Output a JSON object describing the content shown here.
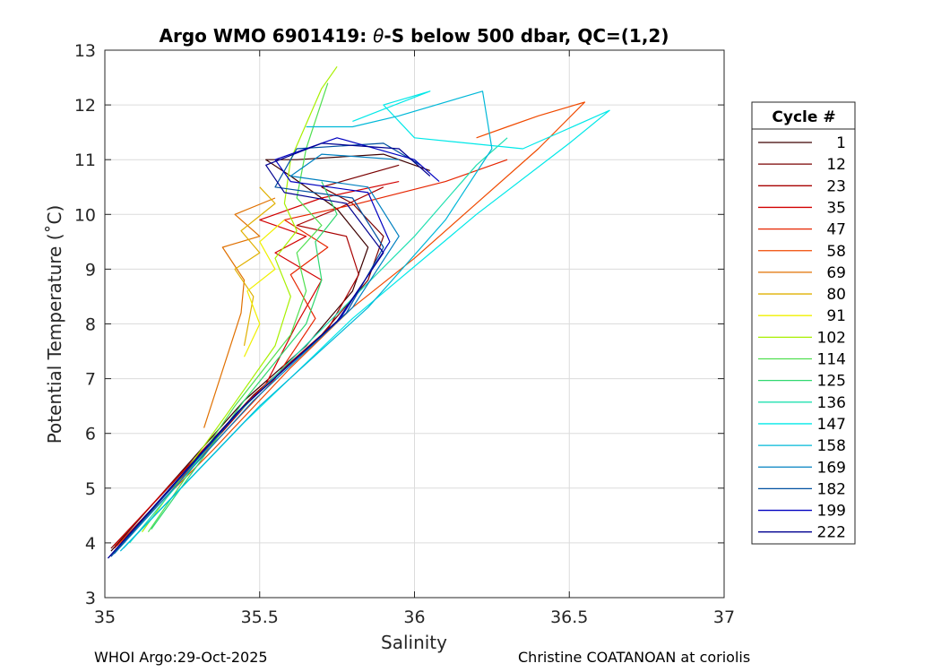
{
  "chart_data": {
    "type": "line",
    "title_prefix": "Argo WMO 6901419: ",
    "title_theta": "θ",
    "title_suffix": "-S below 500 dbar,  QC=(1,2)",
    "xlabel": "Salinity",
    "ylabel": "Potential Temperature (˚C)",
    "xlim": [
      35,
      37
    ],
    "ylim": [
      3,
      13
    ],
    "xticks": [
      35,
      35.5,
      36,
      36.5,
      37
    ],
    "xtick_labels": [
      "35",
      "35.5",
      "36",
      "36.5",
      "37"
    ],
    "yticks": [
      3,
      4,
      5,
      6,
      7,
      8,
      9,
      10,
      11,
      12,
      13
    ],
    "ytick_labels": [
      "3",
      "4",
      "5",
      "6",
      "7",
      "8",
      "9",
      "10",
      "11",
      "12",
      "13"
    ],
    "grid": true,
    "legend": {
      "title": "Cycle #",
      "placement": "right-outside",
      "entries": [
        {
          "label": "1",
          "color": "#3d0000"
        },
        {
          "label": "12",
          "color": "#7a0000"
        },
        {
          "label": "23",
          "color": "#a80000"
        },
        {
          "label": "35",
          "color": "#d20000"
        },
        {
          "label": "47",
          "color": "#e62500"
        },
        {
          "label": "58",
          "color": "#f04a00"
        },
        {
          "label": "69",
          "color": "#e07000"
        },
        {
          "label": "80",
          "color": "#e0b000"
        },
        {
          "label": "91",
          "color": "#f0f000"
        },
        {
          "label": "102",
          "color": "#a8f000"
        },
        {
          "label": "114",
          "color": "#50e050"
        },
        {
          "label": "125",
          "color": "#30d870"
        },
        {
          "label": "136",
          "color": "#20e0b0"
        },
        {
          "label": "147",
          "color": "#00e8e8"
        },
        {
          "label": "158",
          "color": "#00b8d8"
        },
        {
          "label": "169",
          "color": "#0080c0"
        },
        {
          "label": "182",
          "color": "#0050a0"
        },
        {
          "label": "199",
          "color": "#0000c0"
        },
        {
          "label": "222",
          "color": "#000090"
        }
      ]
    },
    "series": [
      {
        "name": "1",
        "color": "#3d0000",
        "points": [
          [
            35.02,
            3.85
          ],
          [
            35.2,
            5.0
          ],
          [
            35.45,
            6.6
          ],
          [
            35.65,
            7.6
          ],
          [
            35.8,
            8.6
          ],
          [
            35.85,
            9.4
          ],
          [
            35.75,
            10.1
          ],
          [
            35.6,
            10.7
          ],
          [
            35.52,
            11.0
          ],
          [
            35.62,
            11.0
          ],
          [
            35.9,
            11.1
          ],
          [
            36.05,
            10.8
          ]
        ]
      },
      {
        "name": "12",
        "color": "#7a0000",
        "points": [
          [
            35.02,
            3.9
          ],
          [
            35.22,
            5.1
          ],
          [
            35.48,
            6.7
          ],
          [
            35.7,
            7.8
          ],
          [
            35.85,
            8.8
          ],
          [
            35.9,
            9.6
          ],
          [
            35.8,
            10.2
          ],
          [
            35.7,
            10.5
          ],
          [
            35.95,
            10.9
          ]
        ]
      },
      {
        "name": "23",
        "color": "#a80000",
        "points": [
          [
            35.03,
            3.9
          ],
          [
            35.25,
            5.2
          ],
          [
            35.5,
            6.8
          ],
          [
            35.72,
            7.9
          ],
          [
            35.82,
            8.9
          ],
          [
            35.78,
            9.6
          ],
          [
            35.62,
            9.8
          ],
          [
            35.75,
            10.1
          ],
          [
            35.9,
            10.5
          ]
        ]
      },
      {
        "name": "35",
        "color": "#d20000",
        "points": [
          [
            35.03,
            3.95
          ],
          [
            35.25,
            5.3
          ],
          [
            35.52,
            6.9
          ],
          [
            35.62,
            8.0
          ],
          [
            35.7,
            8.8
          ],
          [
            35.55,
            9.3
          ],
          [
            35.65,
            9.6
          ],
          [
            35.5,
            9.9
          ],
          [
            35.7,
            10.3
          ],
          [
            35.95,
            10.6
          ]
        ]
      },
      {
        "name": "47",
        "color": "#e62500",
        "points": [
          [
            35.04,
            3.95
          ],
          [
            35.3,
            5.5
          ],
          [
            35.55,
            7.0
          ],
          [
            35.68,
            8.1
          ],
          [
            35.6,
            8.9
          ],
          [
            35.72,
            9.4
          ],
          [
            35.58,
            9.9
          ],
          [
            35.82,
            10.2
          ],
          [
            36.1,
            10.6
          ],
          [
            36.3,
            11.0
          ]
        ]
      },
      {
        "name": "58",
        "color": "#f04a00",
        "points": [
          [
            35.05,
            4.0
          ],
          [
            35.35,
            5.7
          ],
          [
            35.6,
            7.2
          ],
          [
            35.8,
            8.3
          ],
          [
            36.0,
            9.2
          ],
          [
            36.2,
            10.2
          ],
          [
            36.4,
            11.2
          ],
          [
            36.55,
            12.05
          ],
          [
            36.4,
            11.8
          ],
          [
            36.3,
            11.6
          ],
          [
            36.2,
            11.4
          ]
        ]
      },
      {
        "name": "69",
        "color": "#e07000",
        "points": [
          [
            35.32,
            6.1
          ],
          [
            35.44,
            8.2
          ],
          [
            35.45,
            8.8
          ],
          [
            35.38,
            9.4
          ],
          [
            35.5,
            9.6
          ],
          [
            35.42,
            10.0
          ],
          [
            35.55,
            10.3
          ]
        ]
      },
      {
        "name": "80",
        "color": "#e0b000",
        "points": [
          [
            35.45,
            7.6
          ],
          [
            35.48,
            8.5
          ],
          [
            35.42,
            9.0
          ],
          [
            35.5,
            9.3
          ],
          [
            35.44,
            9.7
          ],
          [
            35.55,
            10.2
          ],
          [
            35.5,
            10.5
          ]
        ]
      },
      {
        "name": "91",
        "color": "#f0f000",
        "points": [
          [
            35.45,
            7.4
          ],
          [
            35.5,
            8.0
          ],
          [
            35.46,
            8.6
          ],
          [
            35.55,
            9.0
          ],
          [
            35.5,
            9.5
          ],
          [
            35.58,
            9.9
          ]
        ]
      },
      {
        "name": "102",
        "color": "#a8f000",
        "points": [
          [
            35.12,
            4.2
          ],
          [
            35.4,
            6.4
          ],
          [
            35.55,
            7.6
          ],
          [
            35.6,
            8.5
          ],
          [
            35.55,
            9.2
          ],
          [
            35.62,
            9.7
          ],
          [
            35.58,
            10.2
          ],
          [
            35.6,
            11.0
          ],
          [
            35.7,
            12.3
          ],
          [
            35.75,
            12.7
          ]
        ]
      },
      {
        "name": "114",
        "color": "#50e050",
        "points": [
          [
            35.14,
            4.2
          ],
          [
            35.42,
            6.5
          ],
          [
            35.6,
            7.8
          ],
          [
            35.65,
            8.6
          ],
          [
            35.62,
            9.3
          ],
          [
            35.7,
            9.8
          ],
          [
            35.62,
            10.3
          ],
          [
            35.65,
            11.2
          ],
          [
            35.72,
            12.4
          ]
        ]
      },
      {
        "name": "125",
        "color": "#30d870",
        "points": [
          [
            35.15,
            4.25
          ],
          [
            35.45,
            6.6
          ],
          [
            35.65,
            8.0
          ],
          [
            35.7,
            8.8
          ],
          [
            35.68,
            9.5
          ],
          [
            35.75,
            10.0
          ],
          [
            35.7,
            10.6
          ]
        ]
      },
      {
        "name": "136",
        "color": "#20e0b0",
        "points": [
          [
            35.08,
            4.0
          ],
          [
            35.4,
            6.2
          ],
          [
            35.7,
            7.9
          ],
          [
            36.0,
            9.6
          ],
          [
            36.2,
            10.9
          ],
          [
            36.3,
            11.4
          ]
        ]
      },
      {
        "name": "147",
        "color": "#00e8e8",
        "points": [
          [
            35.06,
            3.9
          ],
          [
            35.45,
            6.2
          ],
          [
            35.8,
            8.1
          ],
          [
            36.2,
            10.0
          ],
          [
            36.5,
            11.3
          ],
          [
            36.63,
            11.9
          ],
          [
            36.35,
            11.2
          ],
          [
            36.0,
            11.4
          ],
          [
            35.9,
            12.0
          ],
          [
            36.05,
            12.25
          ],
          [
            35.8,
            11.7
          ]
        ]
      },
      {
        "name": "158",
        "color": "#00b8d8",
        "points": [
          [
            35.05,
            3.85
          ],
          [
            35.5,
            6.5
          ],
          [
            35.85,
            8.3
          ],
          [
            36.1,
            9.9
          ],
          [
            36.25,
            11.2
          ],
          [
            36.22,
            12.25
          ],
          [
            35.95,
            11.8
          ],
          [
            35.8,
            11.6
          ],
          [
            35.65,
            11.6
          ]
        ]
      },
      {
        "name": "169",
        "color": "#0080c0",
        "points": [
          [
            35.03,
            3.8
          ],
          [
            35.48,
            6.6
          ],
          [
            35.8,
            8.3
          ],
          [
            35.95,
            9.6
          ],
          [
            35.85,
            10.5
          ],
          [
            35.6,
            10.7
          ],
          [
            35.7,
            11.1
          ],
          [
            35.95,
            11.0
          ]
        ]
      },
      {
        "name": "182",
        "color": "#0050a0",
        "points": [
          [
            35.02,
            3.75
          ],
          [
            35.45,
            6.5
          ],
          [
            35.78,
            8.2
          ],
          [
            35.9,
            9.4
          ],
          [
            35.8,
            10.3
          ],
          [
            35.55,
            10.5
          ],
          [
            35.62,
            11.2
          ],
          [
            35.9,
            11.3
          ],
          [
            36.02,
            10.9
          ]
        ]
      },
      {
        "name": "199",
        "color": "#0000c0",
        "points": [
          [
            35.01,
            3.72
          ],
          [
            35.44,
            6.45
          ],
          [
            35.76,
            8.1
          ],
          [
            35.92,
            9.5
          ],
          [
            35.85,
            10.4
          ],
          [
            35.6,
            10.6
          ],
          [
            35.55,
            11.0
          ],
          [
            35.75,
            11.4
          ],
          [
            36.0,
            11.0
          ],
          [
            36.08,
            10.6
          ]
        ]
      },
      {
        "name": "222",
        "color": "#000090",
        "points": [
          [
            35.01,
            3.72
          ],
          [
            35.43,
            6.4
          ],
          [
            35.75,
            8.05
          ],
          [
            35.9,
            9.3
          ],
          [
            35.78,
            10.2
          ],
          [
            35.58,
            10.4
          ],
          [
            35.52,
            10.9
          ],
          [
            35.7,
            11.3
          ],
          [
            35.95,
            11.2
          ],
          [
            36.05,
            10.7
          ]
        ]
      }
    ]
  },
  "footer": {
    "left": "WHOI Argo:29-Oct-2025",
    "right": "Christine COATANOAN at coriolis"
  }
}
